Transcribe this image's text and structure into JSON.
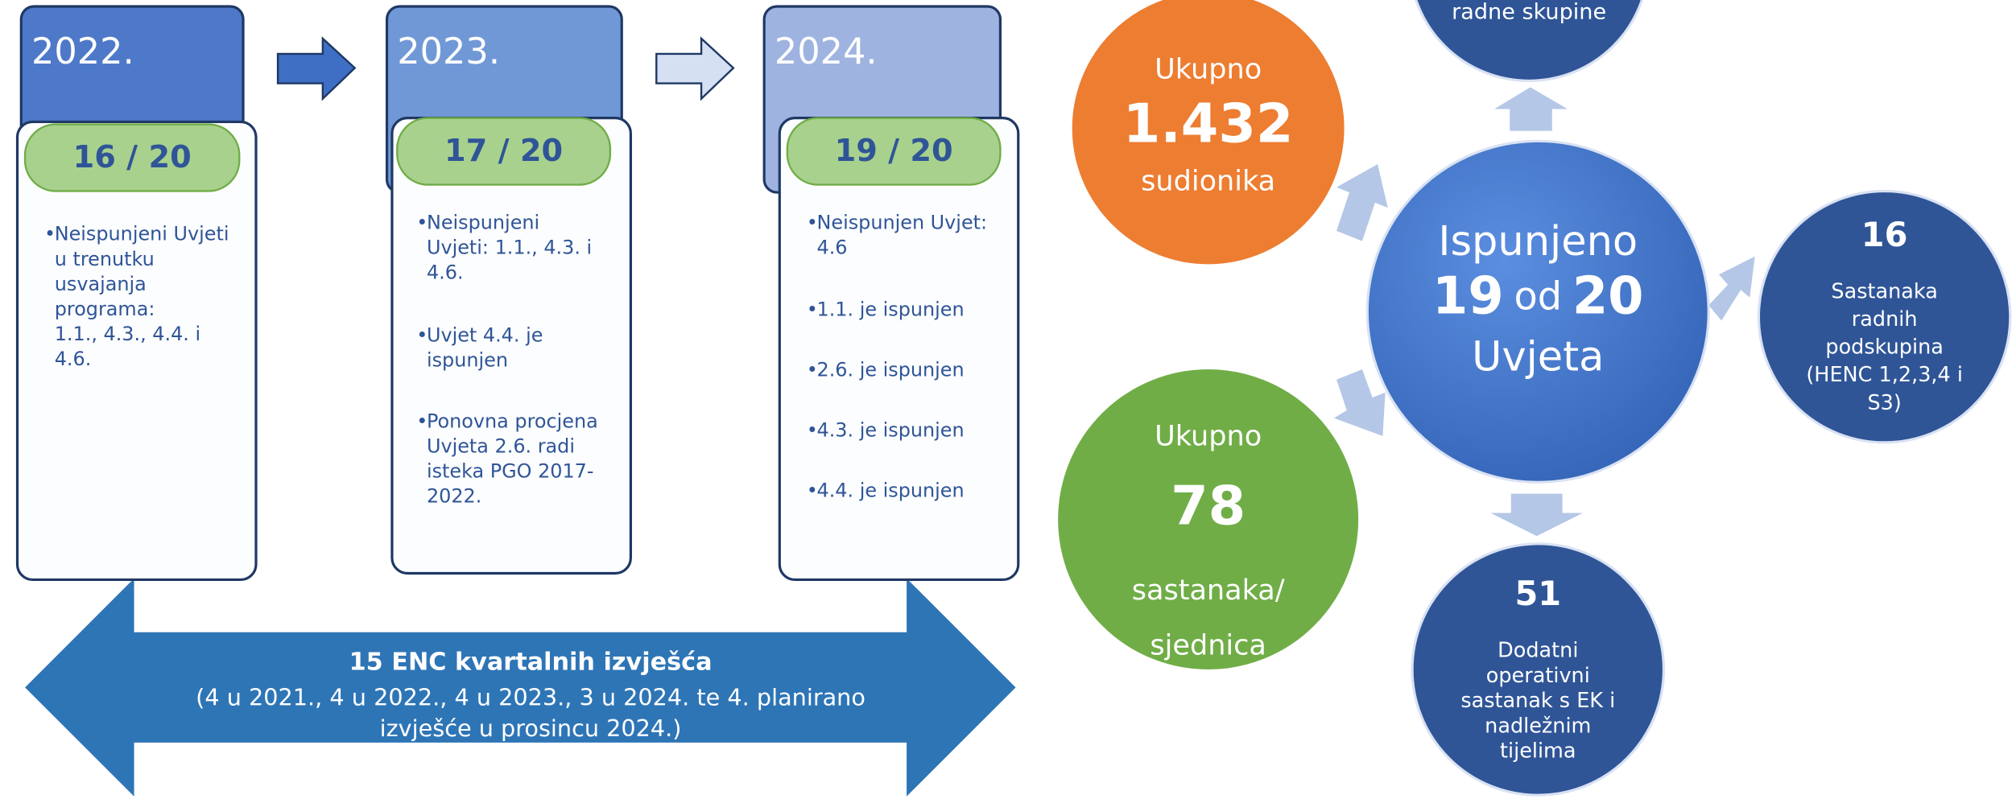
{
  "years": [
    {
      "year": "2022.",
      "score": "16 / 20",
      "items": [
        [
          "Neispunjeni Uvjeti",
          "u trenutku",
          "usvajanja",
          "programa:",
          "1.1., 4.3., 4.4. i",
          "4.6."
        ]
      ]
    },
    {
      "year": "2023.",
      "score": "17 / 20",
      "items": [
        [
          "Neispunjeni",
          "Uvjeti: 1.1., 4.3. i",
          "4.6."
        ],
        [
          "Uvjet 4.4. je",
          "ispunjen"
        ],
        [
          "Ponovna procjena",
          "Uvjeta 2.6. radi",
          "isteka PGO 2017-",
          "2022."
        ]
      ]
    },
    {
      "year": "2024.",
      "score": "19 / 20",
      "items": [
        [
          "Neispunjen Uvjet:",
          "4.6"
        ],
        [
          "1.1. je ispunjen"
        ],
        [
          "2.6. je ispunjen"
        ],
        [
          "4.3. je ispunjen"
        ],
        [
          "4.4. je ispunjen"
        ]
      ]
    }
  ],
  "reports": {
    "title": "15 ENC kvartalnih izvješća",
    "lines": [
      "(4 u 2021., 4 u 2022., 4 u 2023., 3 u 2024. te 4. planirano",
      "izvješće u prosincu 2024.)"
    ]
  },
  "center": {
    "top": "Ispunjeno",
    "done": "19",
    "of": "od",
    "total": "20",
    "bottom": "Uvjeta"
  },
  "participants": {
    "label": "Ukupno",
    "number": "1.432",
    "unit": "sudionika"
  },
  "meetings": {
    "label": "Ukupno",
    "number": "78",
    "unit": [
      "sastanaka/",
      "sjednica"
    ]
  },
  "working_groups": {
    "lines": [
      "radne skupine"
    ]
  },
  "subgroups": {
    "number": "16",
    "lines": [
      "Sastanaka",
      "radnih",
      "podskupina",
      "(HENC 1,2,3,4 i",
      "S3)"
    ]
  },
  "operational": {
    "number": "51",
    "lines": [
      "Dodatni",
      "operativni",
      "sastanak s EK i",
      "nadležnim",
      "tijelima"
    ]
  }
}
